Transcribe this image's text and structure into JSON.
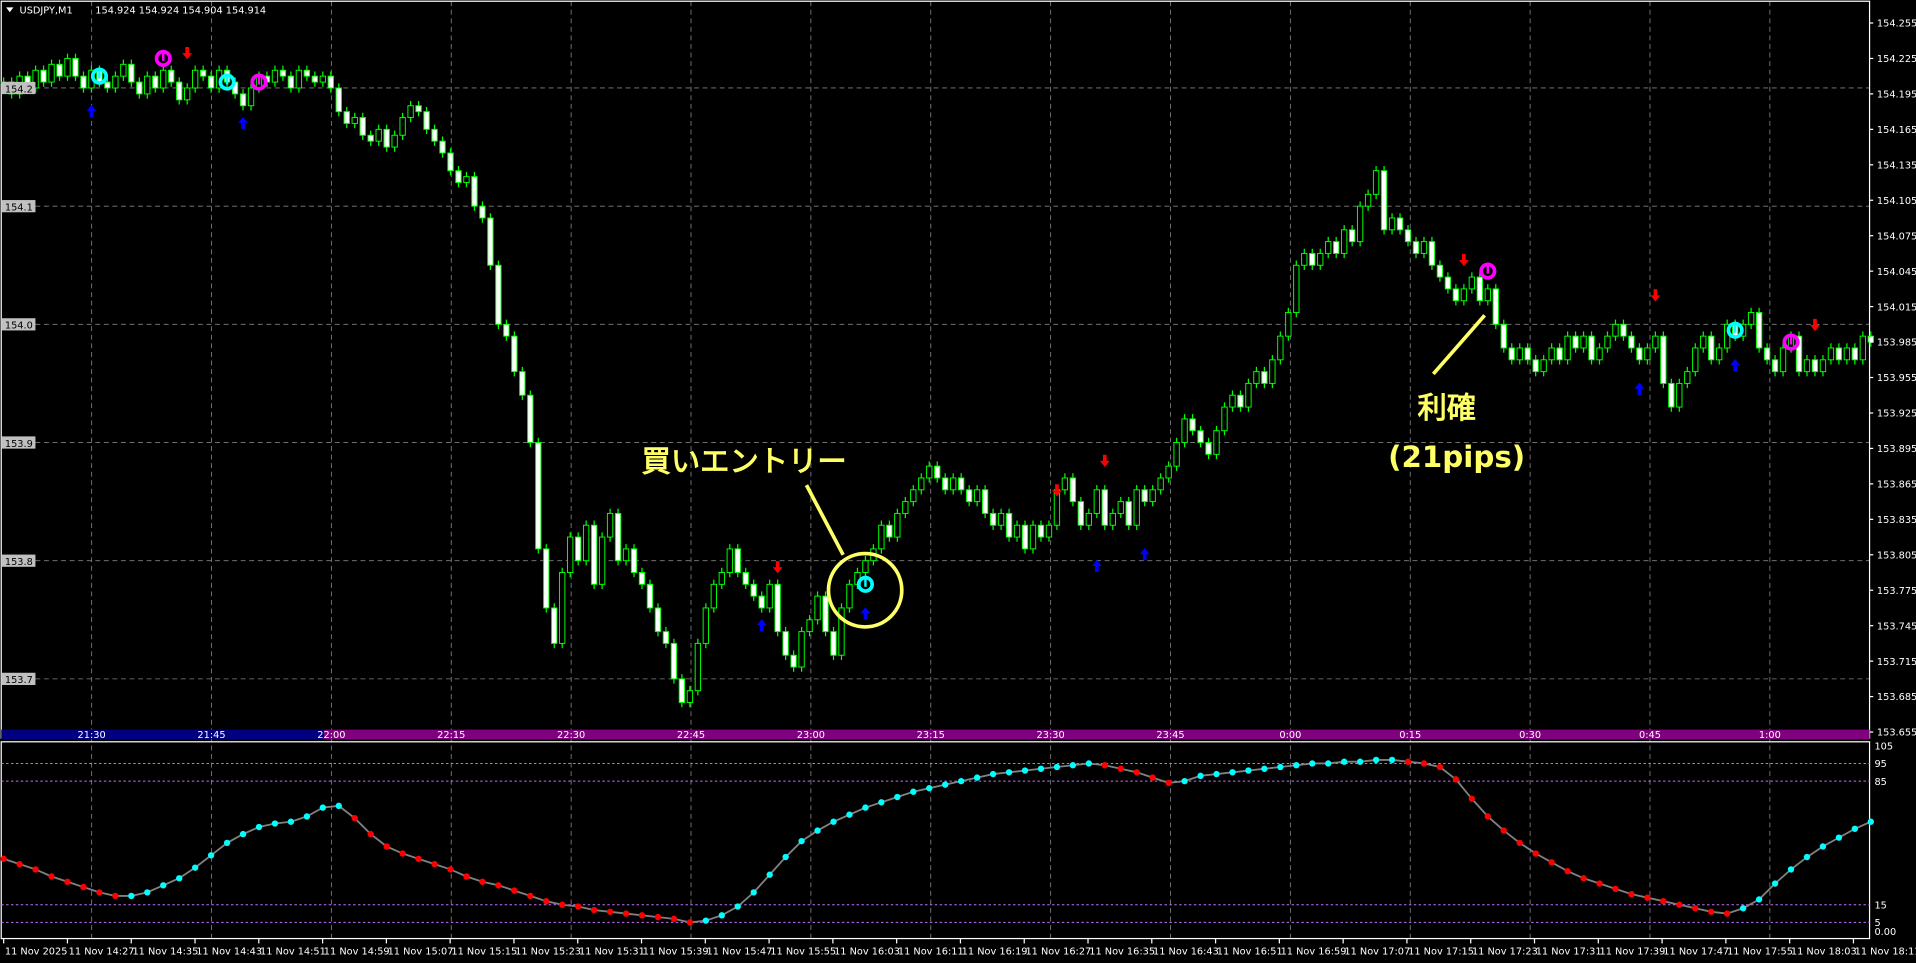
{
  "header": {
    "symbol": "USDJPY,M1",
    "quote": "154.924 154.924 154.904 154.914"
  },
  "colors": {
    "background": "#000000",
    "candle_outline": "#00ff00",
    "bear_body": "#ffffff",
    "bull_body": "#000000",
    "grid": "#808080",
    "band_blue": "#000080",
    "band_purple": "#800080",
    "osc_up": "#00ffff",
    "osc_down": "#ff0000",
    "osc_line": "#808080",
    "level_line": "#c070ff",
    "annotation": "#ffff66",
    "buy_arrow": "#0000ff",
    "sell_arrow": "#ff0000",
    "buy_circle": "#00ffff",
    "exit_circle": "#ff00ff"
  },
  "price_axis": {
    "labels": [
      "154.255",
      "154.225",
      "154.195",
      "154.165",
      "154.135",
      "154.105",
      "154.075",
      "154.045",
      "154.015",
      "153.985",
      "153.955",
      "153.925",
      "153.895",
      "153.865",
      "153.835",
      "153.805",
      "153.775",
      "153.745",
      "153.715",
      "153.685",
      "153.655"
    ]
  },
  "grid_price_labels": [
    "154.2",
    "154.1",
    "154.0",
    "153.9",
    "153.8",
    "153.7"
  ],
  "time_band": {
    "labels": [
      "21:30",
      "21:45",
      "22:00",
      "22:15",
      "22:30",
      "22:45",
      "23:00",
      "23:15",
      "23:30",
      "23:45",
      "0:00",
      "0:15",
      "0:30",
      "0:45",
      "1:00"
    ]
  },
  "time_axis": {
    "labels": [
      "11 Nov 2025",
      "11 Nov 14:27",
      "11 Nov 14:35",
      "11 Nov 14:43",
      "11 Nov 14:51",
      "11 Nov 14:59",
      "11 Nov 15:07",
      "11 Nov 15:15",
      "11 Nov 15:23",
      "11 Nov 15:31",
      "11 Nov 15:39",
      "11 Nov 15:47",
      "11 Nov 15:55",
      "11 Nov 16:03",
      "11 Nov 16:11",
      "11 Nov 16:19",
      "11 Nov 16:27",
      "11 Nov 16:35",
      "11 Nov 16:43",
      "11 Nov 16:51",
      "11 Nov 16:59",
      "11 Nov 17:07",
      "11 Nov 17:15",
      "11 Nov 17:23",
      "11 Nov 17:31",
      "11 Nov 17:39",
      "11 Nov 17:47",
      "11 Nov 17:55",
      "11 Nov 18:03",
      "11 Nov 18:11"
    ]
  },
  "osc_axis": {
    "labels": [
      "105",
      "95",
      "85",
      "15",
      "5",
      "0.00"
    ],
    "levels": [
      95,
      85,
      15,
      5
    ]
  },
  "annotations": {
    "entry": "買いエントリー",
    "exit_line1": "利確",
    "exit_line2": "(21pips)"
  },
  "chart_data": [
    {
      "type": "candlestick",
      "symbol": "USDJPY",
      "timeframe": "M1",
      "ylim": [
        153.655,
        154.255
      ],
      "grid": true,
      "first_bar_time": "11 Nov 14:19",
      "closes": [
        154.205,
        154.195,
        154.21,
        154.2,
        154.215,
        154.205,
        154.22,
        154.21,
        154.225,
        154.21,
        154.2,
        154.215,
        154.205,
        154.2,
        154.21,
        154.22,
        154.205,
        154.195,
        154.21,
        154.2,
        154.215,
        154.205,
        154.19,
        154.2,
        154.215,
        154.21,
        154.2,
        154.215,
        154.205,
        154.195,
        154.185,
        154.2,
        154.21,
        154.205,
        154.215,
        154.21,
        154.2,
        154.215,
        154.21,
        154.205,
        154.21,
        154.2,
        154.18,
        154.17,
        154.175,
        154.16,
        154.155,
        154.165,
        154.15,
        154.16,
        154.175,
        154.185,
        154.18,
        154.165,
        154.155,
        154.145,
        154.13,
        154.12,
        154.125,
        154.1,
        154.09,
        154.05,
        154.0,
        153.99,
        153.96,
        153.94,
        153.9,
        153.81,
        153.76,
        153.73,
        153.79,
        153.82,
        153.8,
        153.83,
        153.78,
        153.82,
        153.84,
        153.8,
        153.81,
        153.79,
        153.78,
        153.76,
        153.74,
        153.73,
        153.7,
        153.68,
        153.69,
        153.73,
        153.76,
        153.78,
        153.79,
        153.81,
        153.79,
        153.78,
        153.77,
        153.76,
        153.78,
        153.74,
        153.72,
        153.71,
        153.74,
        153.75,
        153.77,
        153.74,
        153.72,
        153.76,
        153.78,
        153.79,
        153.8,
        153.81,
        153.83,
        153.82,
        153.84,
        153.85,
        153.86,
        153.87,
        153.88,
        153.87,
        153.86,
        153.87,
        153.86,
        153.85,
        153.86,
        153.84,
        153.83,
        153.84,
        153.82,
        153.83,
        153.81,
        153.83,
        153.82,
        153.83,
        153.86,
        153.87,
        153.85,
        153.83,
        153.84,
        153.86,
        153.83,
        153.84,
        153.85,
        153.83,
        153.86,
        153.85,
        153.86,
        153.87,
        153.88,
        153.9,
        153.92,
        153.91,
        153.9,
        153.89,
        153.91,
        153.93,
        153.94,
        153.93,
        153.95,
        153.96,
        153.95,
        153.97,
        153.99,
        154.01,
        154.05,
        154.06,
        154.05,
        154.06,
        154.07,
        154.06,
        154.08,
        154.07,
        154.1,
        154.11,
        154.13,
        154.08,
        154.09,
        154.08,
        154.07,
        154.06,
        154.07,
        154.05,
        154.04,
        154.03,
        154.02,
        154.03,
        154.04,
        154.02,
        154.03,
        154.0,
        153.98,
        153.97,
        153.98,
        153.97,
        153.96,
        153.97,
        153.98,
        153.97,
        153.99,
        153.98,
        153.99,
        153.97,
        153.98,
        153.99,
        154.0,
        153.99,
        153.98,
        153.97,
        153.98,
        153.99,
        153.95,
        153.93,
        153.95,
        153.96,
        153.98,
        153.99,
        153.97,
        153.98,
        154.0,
        153.99,
        154.0,
        154.01,
        153.98,
        153.97,
        153.96,
        153.98,
        153.99,
        153.96,
        153.97,
        153.96,
        153.97,
        153.98,
        153.97,
        153.98,
        153.97,
        153.99,
        153.985
      ],
      "signals": [
        {
          "bar": 11,
          "price": 154.195,
          "type": "buy-arrow"
        },
        {
          "bar": 30,
          "price": 154.185,
          "type": "buy-arrow"
        },
        {
          "bar": 95,
          "price": 153.76,
          "type": "buy-arrow"
        },
        {
          "bar": 108,
          "price": 153.77,
          "type": "buy-arrow"
        },
        {
          "bar": 137,
          "price": 153.81,
          "type": "buy-arrow"
        },
        {
          "bar": 143,
          "price": 153.82,
          "type": "buy-arrow"
        },
        {
          "bar": 205,
          "price": 153.96,
          "type": "buy-arrow"
        },
        {
          "bar": 217,
          "price": 153.98,
          "type": "buy-arrow"
        },
        {
          "bar": 23,
          "price": 154.215,
          "type": "sell-arrow"
        },
        {
          "bar": 97,
          "price": 153.78,
          "type": "sell-arrow"
        },
        {
          "bar": 132,
          "price": 153.845,
          "type": "sell-arrow"
        },
        {
          "bar": 138,
          "price": 153.87,
          "type": "sell-arrow"
        },
        {
          "bar": 183,
          "price": 154.04,
          "type": "sell-arrow"
        },
        {
          "bar": 207,
          "price": 154.01,
          "type": "sell-arrow"
        },
        {
          "bar": 227,
          "price": 153.985,
          "type": "sell-arrow"
        },
        {
          "bar": 12,
          "price": 154.21,
          "type": "buy-circle"
        },
        {
          "bar": 28,
          "price": 154.205,
          "type": "buy-circle"
        },
        {
          "bar": 108,
          "price": 153.78,
          "type": "buy-circle"
        },
        {
          "bar": 217,
          "price": 153.995,
          "type": "buy-circle"
        },
        {
          "bar": 20,
          "price": 154.225,
          "type": "exit-circle"
        },
        {
          "bar": 32,
          "price": 154.205,
          "type": "exit-circle"
        },
        {
          "bar": 186,
          "price": 154.045,
          "type": "exit-circle"
        },
        {
          "bar": 224,
          "price": 153.985,
          "type": "exit-circle"
        }
      ]
    },
    {
      "type": "line",
      "ylim": [
        0,
        105
      ],
      "levels": [
        95,
        85,
        15,
        5
      ],
      "step_bars": 2,
      "values": [
        41,
        38,
        35,
        31,
        28,
        25,
        22,
        20,
        20,
        22,
        26,
        30,
        36,
        43,
        50,
        55,
        59,
        61,
        62,
        65,
        70,
        71,
        64,
        55,
        48,
        44,
        41,
        38,
        35,
        31,
        28,
        26,
        23,
        20,
        17,
        15,
        14,
        12,
        11,
        10,
        9,
        8,
        7,
        5,
        6,
        9,
        14,
        22,
        32,
        42,
        51,
        57,
        62,
        66,
        70,
        73,
        76,
        79,
        81,
        83,
        85,
        87,
        89,
        90,
        91,
        92,
        93,
        94,
        95,
        94,
        92,
        90,
        87,
        84,
        85,
        88,
        89,
        90,
        91,
        92,
        93,
        94,
        95,
        95,
        96,
        96,
        97,
        97,
        96,
        95,
        93,
        86,
        75,
        65,
        57,
        50,
        44,
        39,
        34,
        30,
        27,
        24,
        21,
        19,
        17,
        15,
        13,
        11,
        10,
        13,
        18,
        27,
        35,
        42,
        48,
        53,
        58,
        62
      ]
    }
  ]
}
